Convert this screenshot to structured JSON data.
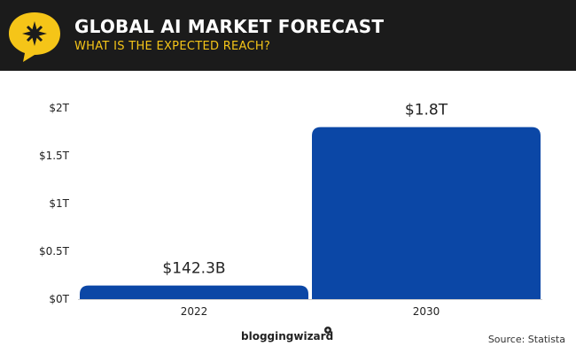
{
  "header": {
    "title": "GLOBAL AI MARKET FORECAST",
    "subtitle": "WHAT IS THE EXPECTED REACH?"
  },
  "footer": {
    "brand": "bloggingwizard",
    "source": "Source: Statista"
  },
  "colors": {
    "header_bg": "#1b1b1b",
    "accent_yellow": "#f5c518",
    "bar": "#0b47a6"
  },
  "chart_data": {
    "type": "bar",
    "categories": [
      "2022",
      "2030"
    ],
    "values": [
      0.1423,
      1.8
    ],
    "value_labels": [
      "$142.3B",
      "$1.8T"
    ],
    "y_ticks": [
      0,
      0.5,
      1,
      1.5,
      2
    ],
    "y_tick_labels": [
      "$0T",
      "$0.5T",
      "$1T",
      "$1.5T",
      "$2T"
    ],
    "ylim": [
      0,
      2
    ],
    "grid": false
  }
}
